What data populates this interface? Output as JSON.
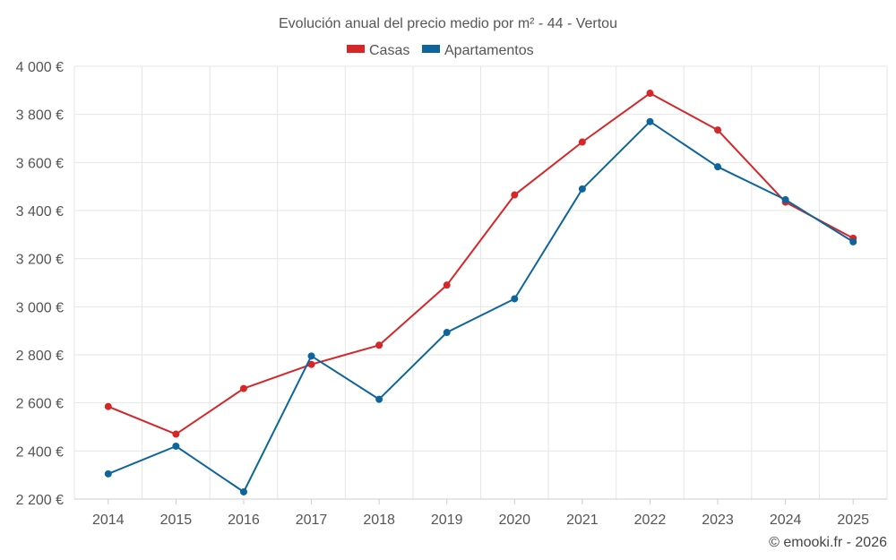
{
  "chart_data": {
    "type": "line",
    "title": "Evolución anual del precio medio por m² - 44 - Vertou",
    "categories": [
      "2014",
      "2015",
      "2016",
      "2017",
      "2018",
      "2019",
      "2020",
      "2021",
      "2022",
      "2023",
      "2024",
      "2025"
    ],
    "series": [
      {
        "name": "Casas",
        "color": "#d62728",
        "values": [
          2585,
          2470,
          2660,
          2760,
          2840,
          3090,
          3465,
          3685,
          3888,
          3735,
          3435,
          3285
        ]
      },
      {
        "name": "Apartamentos",
        "color": "#0e659c",
        "values": [
          2305,
          2420,
          2230,
          2795,
          2615,
          2893,
          3033,
          3490,
          3770,
          3582,
          3445,
          3270
        ]
      }
    ],
    "ylim": [
      2200,
      4000
    ],
    "yticks": [
      2200,
      2400,
      2600,
      2800,
      3000,
      3200,
      3400,
      3600,
      3800,
      4000
    ],
    "ytick_labels": [
      "2 200 €",
      "2 400 €",
      "2 600 €",
      "2 800 €",
      "3 000 €",
      "3 200 €",
      "3 400 €",
      "3 600 €",
      "3 800 €",
      "4 000 €"
    ],
    "xlabel": "",
    "ylabel": "",
    "legend_position": "top-center",
    "grid": true
  },
  "credit": "© emooki.fr - 2026"
}
